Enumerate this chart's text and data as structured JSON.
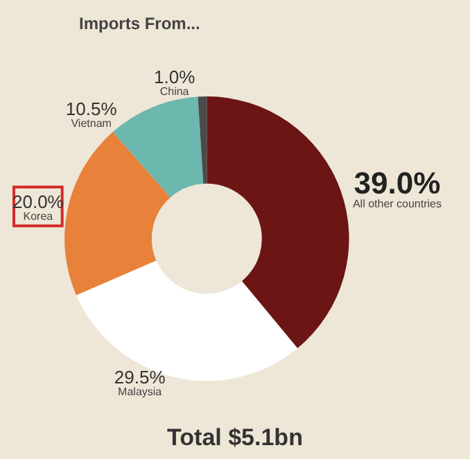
{
  "chart_data": {
    "type": "donut",
    "title": "Imports From...",
    "subtitle": "Total $5.1bn",
    "categories": [
      "All other countries",
      "Malaysia",
      "Korea",
      "Vietnam",
      "China"
    ],
    "values": [
      39.0,
      29.5,
      20.0,
      10.5,
      1.0
    ],
    "value_labels": [
      "39.0%",
      "29.5%",
      "20.0%",
      "10.5%",
      "1.0%"
    ],
    "colors": [
      "#6b1515",
      "#ffffff",
      "#e8813a",
      "#6cb7ae",
      "#4a4a4a"
    ],
    "legend": false
  }
}
